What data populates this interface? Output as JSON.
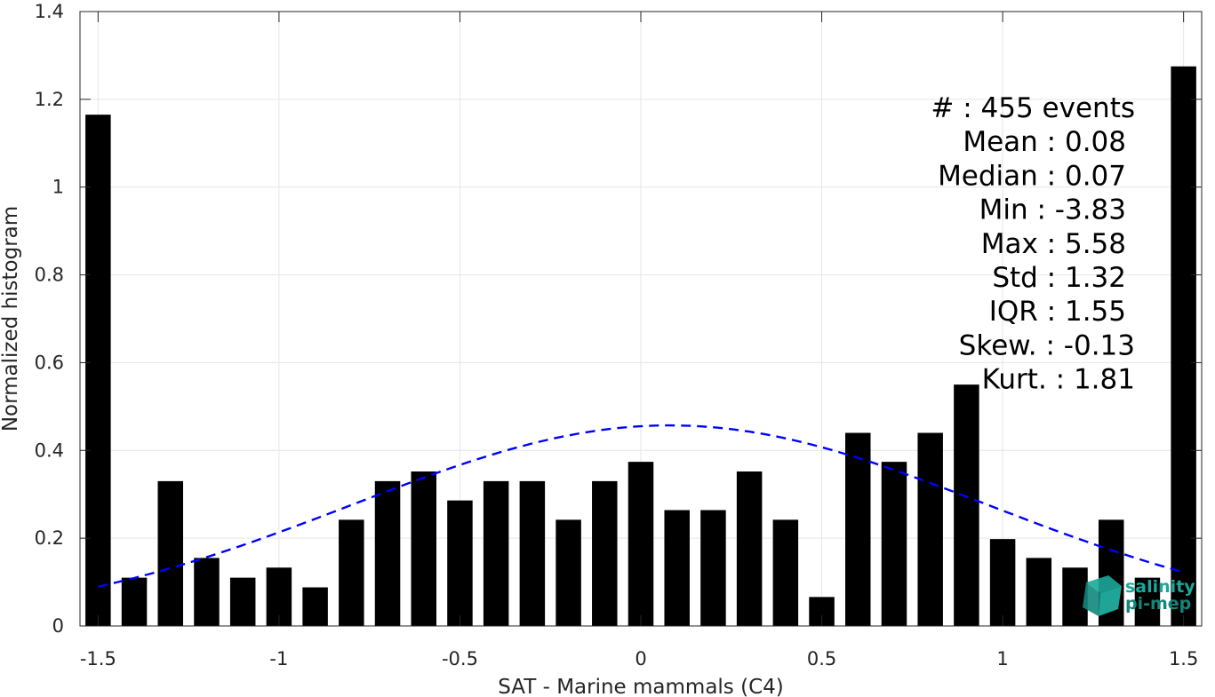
{
  "chart_data": {
    "type": "bar",
    "title": "",
    "xlabel": "SAT - Marine mammals (C4)",
    "ylabel": "Normalized histogram",
    "xlim": [
      -1.55,
      1.55
    ],
    "ylim": [
      0,
      1.4
    ],
    "grid": true,
    "xticks": [
      -1.5,
      -1,
      -0.5,
      0,
      0.5,
      1,
      1.5
    ],
    "xtick_labels": [
      "-1.5",
      "-1",
      "-0.5",
      "0",
      "0.5",
      "1",
      "1.5"
    ],
    "yticks": [
      0,
      0.2,
      0.4,
      0.6,
      0.8,
      1,
      1.2,
      1.4
    ],
    "ytick_labels": [
      "0",
      "0.2",
      "0.4",
      "0.6",
      "0.8",
      "1",
      "1.2",
      "1.4"
    ],
    "bar_width": 0.07,
    "x": [
      -1.5,
      -1.4,
      -1.3,
      -1.2,
      -1.1,
      -1.0,
      -0.9,
      -0.8,
      -0.7,
      -0.6,
      -0.5,
      -0.4,
      -0.3,
      -0.2,
      -0.1,
      0.0,
      0.1,
      0.2,
      0.3,
      0.4,
      0.5,
      0.6,
      0.7,
      0.8,
      0.9,
      1.0,
      1.1,
      1.2,
      1.3,
      1.4,
      1.5
    ],
    "values": [
      1.165,
      0.11,
      0.33,
      0.155,
      0.11,
      0.133,
      0.088,
      0.242,
      0.33,
      0.352,
      0.286,
      0.33,
      0.33,
      0.242,
      0.33,
      0.374,
      0.264,
      0.264,
      0.352,
      0.242,
      0.066,
      0.44,
      0.374,
      0.44,
      0.55,
      0.198,
      0.155,
      0.133,
      0.242,
      0.11,
      1.275
    ],
    "bar_color": "#000000",
    "fit_curve": {
      "style": "dashed",
      "color": "#0000ff",
      "mean": 0.08,
      "std": 0.875,
      "x_range": [
        -1.5,
        1.5
      ]
    },
    "stats": [
      "#  : 455 events",
      "Mean : 0.08",
      "Median : 0.07",
      "Min : -3.83",
      "Max : 5.58",
      "Std : 1.32",
      "IQR : 1.55",
      "Skew. : -0.13",
      "Kurt. : 1.81"
    ]
  },
  "logo": {
    "line1": "salinity",
    "line2": "pi-mep",
    "color": "#1aa89a"
  }
}
